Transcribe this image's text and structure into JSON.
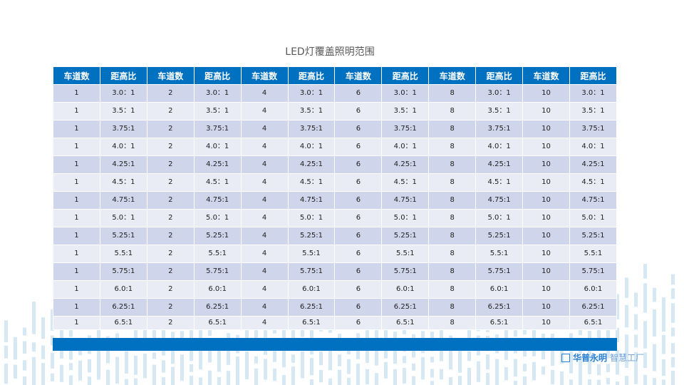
{
  "title": "LED灯覆盖照明范围",
  "headers": [
    "车道数",
    "距高比",
    "车道数",
    "距高比",
    "车道数",
    "距高比",
    "车道数",
    "距高比",
    "车道数",
    "距高比",
    "车道数",
    "距高比"
  ],
  "rows": [
    [
      "1",
      "3.0：1",
      "2",
      "3.0：1",
      "4",
      "3.0：1",
      "6",
      "3.0：1",
      "8",
      "3.0：1",
      "10",
      "3.0：1"
    ],
    [
      "1",
      "3.5：1",
      "2",
      "3.5：1",
      "4",
      "3.5：1",
      "6",
      "3.5：1",
      "8",
      "3.5：1",
      "10",
      "3.5：1"
    ],
    [
      "1",
      "3.75:1",
      "2",
      "3.75:1",
      "4",
      "3.75:1",
      "6",
      "3.75:1",
      "8",
      "3.75:1",
      "10",
      "3.75:1"
    ],
    [
      "1",
      "4.0：1",
      "2",
      "4.0：1",
      "4",
      "4.0：1",
      "6",
      "4.0：1",
      "8",
      "4.0：1",
      "10",
      "4.0：1"
    ],
    [
      "1",
      "4.25:1",
      "2",
      "4.25:1",
      "4",
      "4.25:1",
      "6",
      "4.25:1",
      "8",
      "4.25:1",
      "10",
      "4.25:1"
    ],
    [
      "1",
      "4.5：1",
      "2",
      "4.5：1",
      "4",
      "4.5：1",
      "6",
      "4.5：1",
      "8",
      "4.5：1",
      "10",
      "4.5：1"
    ],
    [
      "1",
      "4.75:1",
      "2",
      "4.75:1",
      "4",
      "4.75:1",
      "6",
      "4.75:1",
      "8",
      "4.75:1",
      "10",
      "4.75:1"
    ],
    [
      "1",
      "5.0：1",
      "2",
      "5.0：1",
      "4",
      "5.0：1",
      "6",
      "5.0：1",
      "8",
      "5.0：1",
      "10",
      "5.0：1"
    ],
    [
      "1",
      "5.25:1",
      "2",
      "5.25:1",
      "4",
      "5.25:1",
      "6",
      "5.25:1",
      "8",
      "5.25:1",
      "10",
      "5.25:1"
    ],
    [
      "1",
      "5.5:1",
      "2",
      "5.5:1",
      "4",
      "5.5:1",
      "6",
      "5.5:1",
      "8",
      "5.5:1",
      "10",
      "5.5:1"
    ],
    [
      "1",
      "5.75:1",
      "2",
      "5.75:1",
      "4",
      "5.75:1",
      "6",
      "5.75:1",
      "8",
      "5.75:1",
      "10",
      "5.75:1"
    ],
    [
      "1",
      "6.0:1",
      "2",
      "6.0:1",
      "4",
      "6.0:1",
      "6",
      "6.0:1",
      "8",
      "6.0:1",
      "10",
      "6.0:1"
    ],
    [
      "1",
      "6.25:1",
      "2",
      "6.25:1",
      "4",
      "6.25:1",
      "6",
      "6.25:1",
      "8",
      "6.25:1",
      "10",
      "6.25:1"
    ],
    [
      "1",
      "6.5:1",
      "2",
      "6.5:1",
      "4",
      "6.5:1",
      "6",
      "6.5:1",
      "8",
      "6.5:1",
      "10",
      "6.5:1"
    ]
  ],
  "logo": {
    "mark": "MI",
    "brand": "华普永明",
    "sub": "智慧工厂"
  },
  "colors": {
    "header": "#0070c0",
    "row_odd": "#cfd5ea",
    "row_even": "#e9ebf5",
    "decoration": "#d6e8f4"
  }
}
